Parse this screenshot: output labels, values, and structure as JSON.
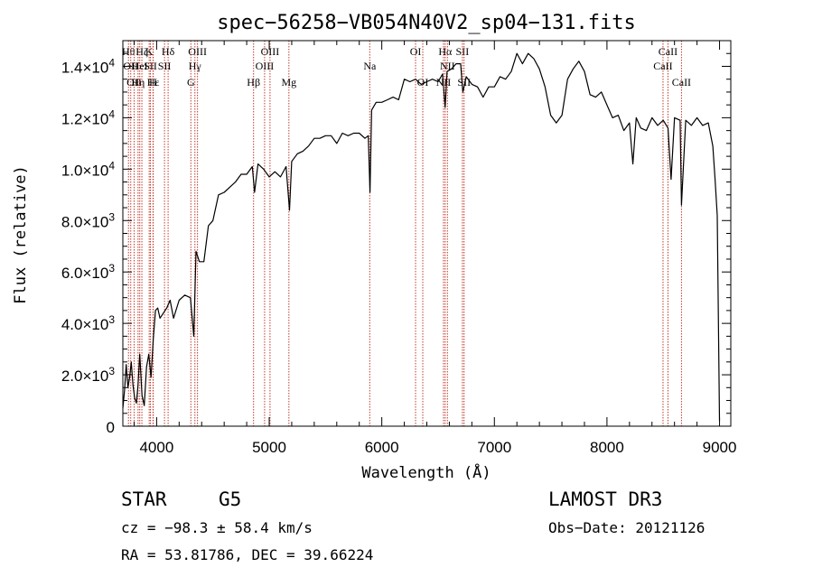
{
  "chart_data": {
    "type": "line",
    "title": "spec−56258−VB054N40V2_sp04−131.fits",
    "xlabel": "Wavelength (Å)",
    "ylabel": "Flux (relative)",
    "xlim": [
      3700,
      9100
    ],
    "ylim": [
      0,
      15000
    ],
    "x_ticks": [
      4000,
      5000,
      6000,
      7000,
      8000,
      9000
    ],
    "y_ticks": [
      {
        "value": 0,
        "mant": "0",
        "exp": ""
      },
      {
        "value": 2000,
        "mant": "2.0×10",
        "exp": "3"
      },
      {
        "value": 4000,
        "mant": "4.0×10",
        "exp": "3"
      },
      {
        "value": 6000,
        "mant": "6.0×10",
        "exp": "3"
      },
      {
        "value": 8000,
        "mant": "8.0×10",
        "exp": "3"
      },
      {
        "value": 10000,
        "mant": "1.0×10",
        "exp": "4"
      },
      {
        "value": 12000,
        "mant": "1.2×10",
        "exp": "4"
      },
      {
        "value": 14000,
        "mant": "1.4×10",
        "exp": "4"
      }
    ],
    "series": [
      {
        "name": "flux",
        "x": [
          3700,
          3715,
          3730,
          3745,
          3760,
          3775,
          3790,
          3805,
          3820,
          3835,
          3850,
          3870,
          3890,
          3910,
          3930,
          3950,
          3970,
          3990,
          4010,
          4030,
          4060,
          4090,
          4120,
          4150,
          4200,
          4250,
          4300,
          4330,
          4350,
          4380,
          4420,
          4460,
          4500,
          4550,
          4600,
          4650,
          4700,
          4750,
          4800,
          4850,
          4870,
          4900,
          4950,
          5000,
          5050,
          5100,
          5150,
          5180,
          5200,
          5250,
          5300,
          5350,
          5400,
          5450,
          5500,
          5550,
          5600,
          5650,
          5700,
          5750,
          5800,
          5850,
          5880,
          5895,
          5910,
          5950,
          6000,
          6050,
          6100,
          6150,
          6200,
          6250,
          6300,
          6350,
          6400,
          6450,
          6500,
          6540,
          6563,
          6580,
          6620,
          6660,
          6700,
          6720,
          6750,
          6800,
          6850,
          6900,
          6950,
          7000,
          7050,
          7100,
          7150,
          7200,
          7250,
          7300,
          7350,
          7400,
          7450,
          7500,
          7550,
          7600,
          7650,
          7700,
          7750,
          7800,
          7850,
          7900,
          7950,
          8000,
          8050,
          8100,
          8150,
          8200,
          8230,
          8260,
          8300,
          8350,
          8400,
          8450,
          8500,
          8542,
          8570,
          8600,
          8650,
          8662,
          8700,
          8750,
          8800,
          8850,
          8900,
          8940,
          8960,
          8980,
          9000
        ],
        "values": [
          700,
          1400,
          2400,
          1500,
          1900,
          2500,
          1600,
          1100,
          900,
          1600,
          2800,
          1200,
          800,
          2300,
          2800,
          1900,
          3400,
          4500,
          4600,
          4200,
          4400,
          4600,
          4900,
          4200,
          4900,
          5100,
          5000,
          3500,
          6800,
          6400,
          6400,
          7800,
          8000,
          9000,
          9100,
          9300,
          9500,
          9800,
          9800,
          10100,
          9100,
          10200,
          10000,
          9700,
          9900,
          9700,
          10100,
          8400,
          10300,
          10600,
          10700,
          10900,
          11200,
          11200,
          11300,
          11300,
          11000,
          11400,
          11300,
          11400,
          11400,
          11200,
          11300,
          9100,
          12300,
          12600,
          12600,
          12700,
          12800,
          12700,
          13500,
          13400,
          13500,
          13300,
          13400,
          13500,
          13400,
          13700,
          12400,
          13800,
          13900,
          14100,
          14100,
          13000,
          13600,
          13300,
          13200,
          12800,
          13200,
          13200,
          13600,
          13500,
          13800,
          14500,
          14100,
          14500,
          14300,
          13900,
          13200,
          12100,
          11800,
          12100,
          13500,
          13900,
          14200,
          13800,
          12900,
          12800,
          13000,
          12500,
          12000,
          12100,
          11500,
          11800,
          10200,
          12000,
          11600,
          11500,
          12000,
          11700,
          11900,
          11600,
          9600,
          12000,
          11900,
          8600,
          11900,
          11700,
          12000,
          11700,
          11800,
          10900,
          9600,
          8200,
          200
        ]
      }
    ],
    "annotations": [
      {
        "x": 3750,
        "label": "Hθ",
        "row": 1
      },
      {
        "x": 3770,
        "label": "OII",
        "row": 2
      },
      {
        "x": 3800,
        "label": "OII",
        "row": 3
      },
      {
        "x": 3835,
        "label": "Hη",
        "row": 3
      },
      {
        "x": 3850,
        "label": "HeI",
        "row": 2
      },
      {
        "x": 3869,
        "label": "Hζ",
        "row": 1
      },
      {
        "x": 3934,
        "label": "K",
        "row": 1
      },
      {
        "x": 3945,
        "label": "SII",
        "row": 2
      },
      {
        "x": 3970,
        "label": "Hε",
        "row": 3
      },
      {
        "x": 3968,
        "label": "H",
        "row": 3
      },
      {
        "x": 4102,
        "label": "Hδ",
        "row": 1
      },
      {
        "x": 4070,
        "label": "SII",
        "row": 2
      },
      {
        "x": 4304,
        "label": "G",
        "row": 3
      },
      {
        "x": 4340,
        "label": "Hγ",
        "row": 2
      },
      {
        "x": 4363,
        "label": "OIII",
        "row": 1
      },
      {
        "x": 4861,
        "label": "Hβ",
        "row": 3
      },
      {
        "x": 4959,
        "label": "OIII",
        "row": 2
      },
      {
        "x": 5007,
        "label": "OIII",
        "row": 1
      },
      {
        "x": 5175,
        "label": "Mg",
        "row": 3
      },
      {
        "x": 5893,
        "label": "Na",
        "row": 2
      },
      {
        "x": 6300,
        "label": "OI",
        "row": 1
      },
      {
        "x": 6364,
        "label": "OI",
        "row": 3
      },
      {
        "x": 6548,
        "label": "NII",
        "row": 3
      },
      {
        "x": 6563,
        "label": "Hα",
        "row": 1
      },
      {
        "x": 6583,
        "label": "NII",
        "row": 2
      },
      {
        "x": 6716,
        "label": "SII",
        "row": 1
      },
      {
        "x": 6731,
        "label": "SII",
        "row": 3
      },
      {
        "x": 8498,
        "label": "CaII",
        "row": 2
      },
      {
        "x": 8542,
        "label": "CaII",
        "row": 1
      },
      {
        "x": 8662,
        "label": "CaII",
        "row": 3
      }
    ]
  },
  "info": {
    "class_label": "STAR",
    "subclass": "G5",
    "survey": "LAMOST DR3",
    "cz": "cz = −98.3 ± 58.4 km/s",
    "obs_date": "Obs−Date: 20121126",
    "coords": "RA =  53.81786, DEC =  39.66224"
  }
}
